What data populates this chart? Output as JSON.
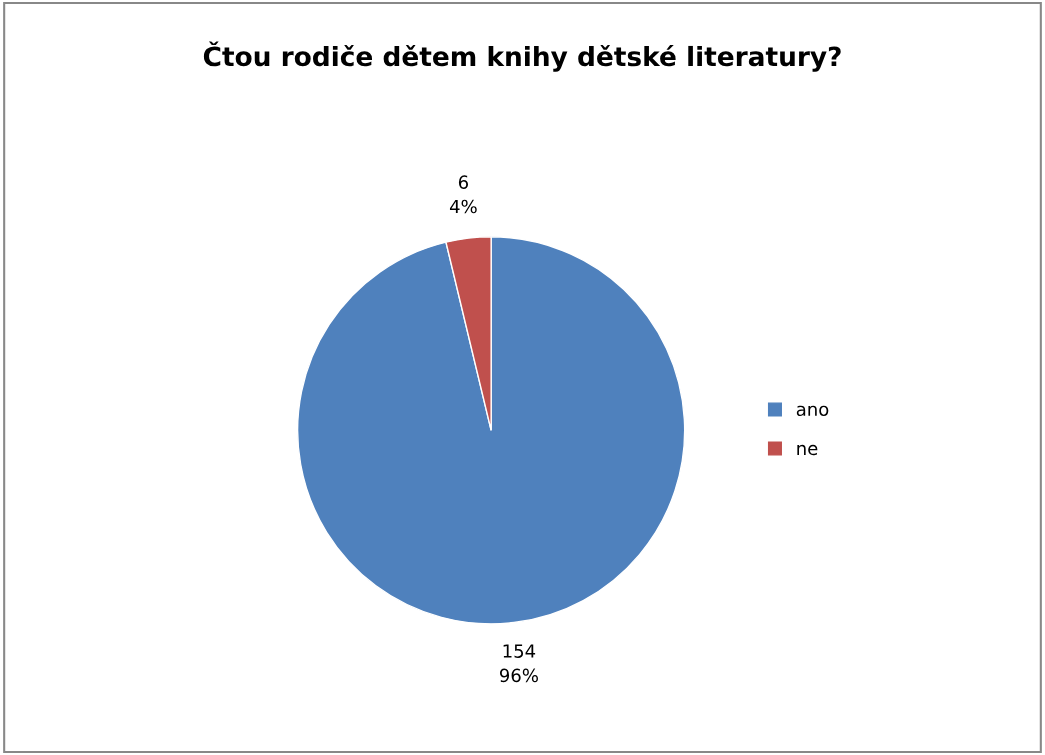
{
  "chart_data": {
    "type": "pie",
    "title": "Čtou rodiče dětem knihy dětské literatury?",
    "categories": [
      "ano",
      "ne"
    ],
    "values": [
      154,
      6
    ],
    "colors": [
      "#4f81bd",
      "#c0504d"
    ],
    "value_labels": [
      "154\n96%",
      "6\n4%"
    ],
    "legend": "right"
  }
}
